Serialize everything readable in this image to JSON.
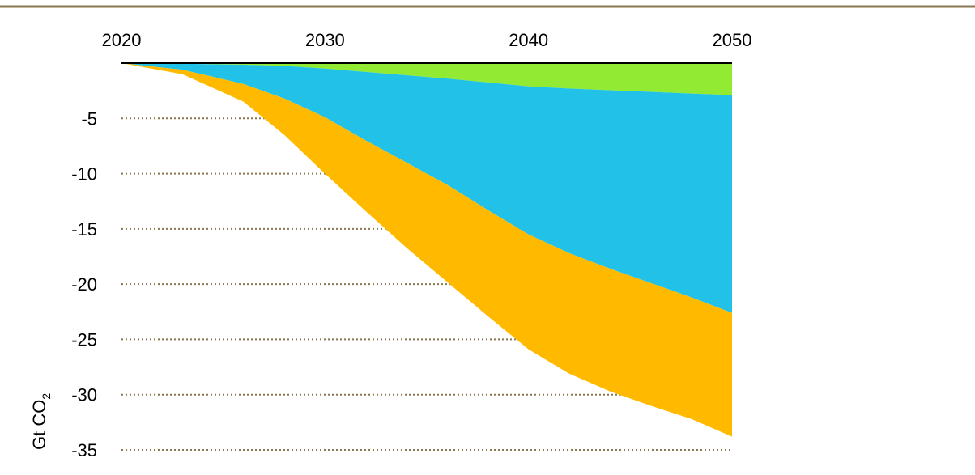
{
  "chart_data": {
    "type": "area",
    "stacked": true,
    "title": "",
    "xlabel": "",
    "ylabel": "Gt CO2",
    "ylabel_parts": {
      "main": "Gt CO",
      "subscript": "2"
    },
    "x_axis_position": "top",
    "x_ticks": [
      2020,
      2030,
      2040,
      2050
    ],
    "y_ticks": [
      -5,
      -10,
      -15,
      -20,
      -25,
      -30,
      -35
    ],
    "xlim": [
      2020,
      2050
    ],
    "ylim": [
      -35,
      0
    ],
    "grid": "dotted horizontal lines at y ticks",
    "x": [
      2020,
      2023,
      2026,
      2028,
      2030,
      2032,
      2034,
      2036,
      2038,
      2040,
      2042,
      2044,
      2046,
      2048,
      2050
    ],
    "series": [
      {
        "color": "#92ea33",
        "values": [
          0,
          -0.05,
          -0.15,
          -0.25,
          -0.5,
          -0.8,
          -1.1,
          -1.4,
          -1.75,
          -2.1,
          -2.3,
          -2.45,
          -2.6,
          -2.75,
          -2.9
        ]
      },
      {
        "color": "#22c2e8",
        "values": [
          0,
          -0.55,
          -1.75,
          -2.95,
          -4.4,
          -6.2,
          -7.9,
          -9.6,
          -11.55,
          -13.4,
          -14.9,
          -16.15,
          -17.3,
          -18.45,
          -19.7
        ]
      },
      {
        "color": "#ffba00",
        "values": [
          0,
          -0.4,
          -1.6,
          -3.3,
          -5.1,
          -6.4,
          -7.7,
          -8.8,
          -9.6,
          -10.4,
          -10.9,
          -11.1,
          -11.1,
          -11.0,
          -11.2
        ]
      }
    ],
    "frame_color": "#8b7752"
  }
}
